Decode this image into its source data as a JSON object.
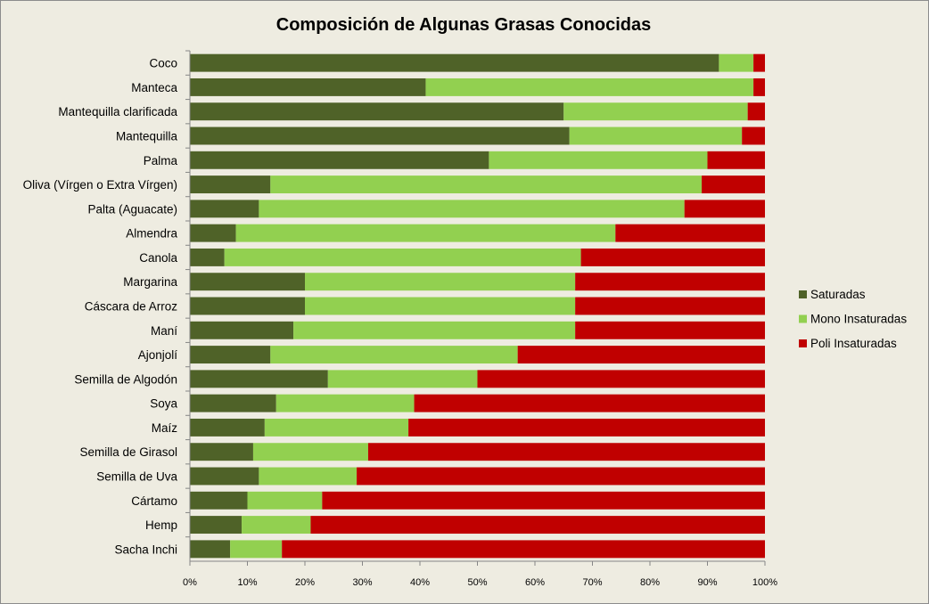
{
  "chart_data": {
    "type": "bar",
    "orientation": "horizontal",
    "stacked": "percent",
    "title": "Composición de Algunas Grasas Conocidas",
    "xlabel": "",
    "ylabel": "",
    "xlim": [
      0,
      100
    ],
    "x_ticks": [
      "0%",
      "10%",
      "20%",
      "30%",
      "40%",
      "50%",
      "60%",
      "70%",
      "80%",
      "90%",
      "100%"
    ],
    "grid": false,
    "legend_position": "right",
    "categories": [
      "Coco",
      "Manteca",
      "Mantequilla clarificada",
      "Mantequilla",
      "Palma",
      "Oliva (Vírgen o Extra Vírgen)",
      "Palta (Aguacate)",
      "Almendra",
      "Canola",
      "Margarina",
      "Cáscara de Arroz",
      "Maní",
      "Ajonjolí",
      "Semilla de Algodón",
      "Soya",
      "Maíz",
      "Semilla de Girasol",
      "Semilla de Uva",
      "Cártamo",
      "Hemp",
      "Sacha Inchi"
    ],
    "series": [
      {
        "name": "Saturadas",
        "color": "#4f6228",
        "values": [
          92,
          41,
          65,
          66,
          52,
          14,
          12,
          8,
          6,
          20,
          20,
          18,
          14,
          24,
          15,
          13,
          11,
          12,
          10,
          9,
          7
        ]
      },
      {
        "name": "Mono Insaturadas",
        "color": "#92d050",
        "values": [
          6,
          57,
          32,
          30,
          38,
          75,
          74,
          66,
          62,
          47,
          47,
          49,
          43,
          26,
          24,
          25,
          20,
          17,
          13,
          12,
          9
        ]
      },
      {
        "name": "Poli Insaturadas",
        "color": "#c00000",
        "values": [
          2,
          2,
          3,
          4,
          10,
          11,
          14,
          26,
          32,
          33,
          33,
          33,
          43,
          50,
          61,
          62,
          69,
          71,
          77,
          79,
          84
        ]
      }
    ]
  }
}
